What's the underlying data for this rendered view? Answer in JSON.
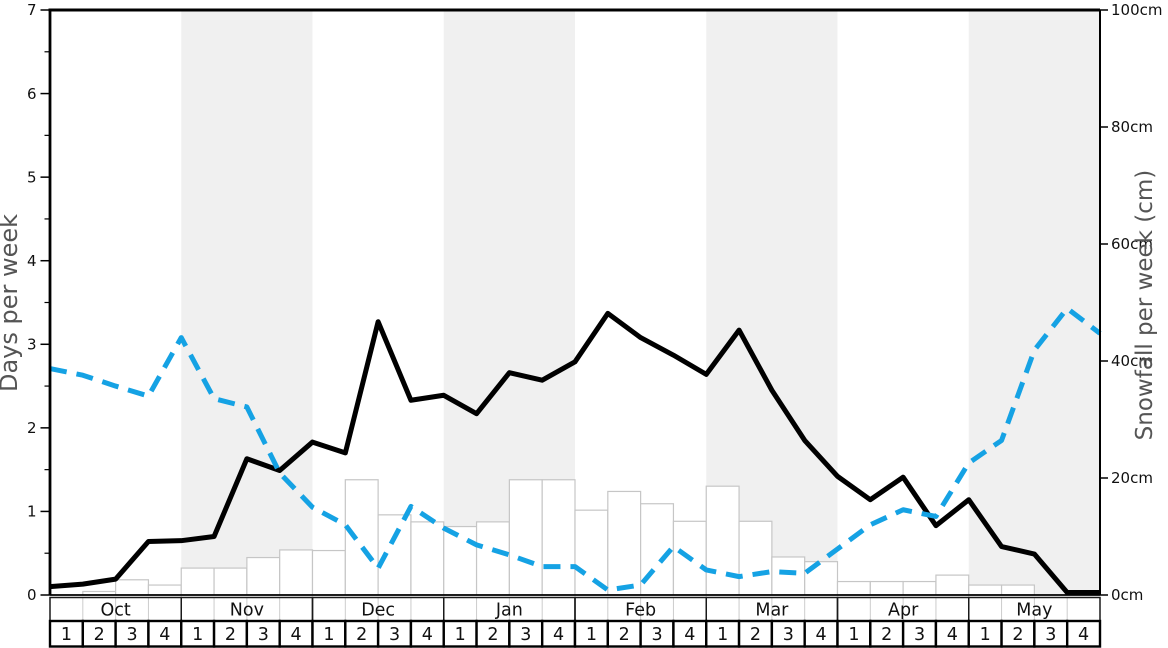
{
  "page": {
    "background": "#ffffff"
  },
  "chart_data": {
    "type": "line+bar",
    "title": "",
    "months": [
      "Oct",
      "Nov",
      "Dec",
      "Jan",
      "Feb",
      "Mar",
      "Apr",
      "May"
    ],
    "week_labels": [
      "1",
      "2",
      "3",
      "4"
    ],
    "shaded_months": [
      "Nov",
      "Jan",
      "Mar",
      "May"
    ],
    "left_axis": {
      "label": "Days per week",
      "min": 0,
      "max": 7,
      "major_tick": 1,
      "minor_tick": 0.5,
      "tick_labels": [
        "0",
        "1",
        "2",
        "3",
        "4",
        "5",
        "6",
        "7"
      ]
    },
    "right_axis": {
      "label": "Snowfall per week (cm)",
      "min": 0,
      "max": 100,
      "tick_step": 20,
      "tick_labels": [
        "0cm",
        "20cm",
        "40cm",
        "60cm",
        "80cm",
        "100cm"
      ]
    },
    "x_description": "33 line points plotted at week boundaries from start of Oct to end of May; 32 weekly bars",
    "series": [
      {
        "name": "days_per_week_solid_black",
        "style": "solid",
        "axis": "left",
        "color": "#000000",
        "values": [
          0.1,
          0.13,
          0.19,
          0.64,
          0.65,
          0.7,
          1.63,
          1.49,
          1.83,
          1.7,
          3.27,
          2.33,
          2.39,
          2.17,
          2.66,
          2.57,
          2.79,
          3.37,
          3.08,
          2.87,
          2.64,
          3.17,
          2.45,
          1.85,
          1.42,
          1.14,
          1.41,
          0.83,
          1.14,
          0.58,
          0.49,
          0.03,
          0.03
        ]
      },
      {
        "name": "dashed_blue_line",
        "style": "dashed",
        "axis": "left",
        "color": "#15a2e4",
        "values": [
          2.71,
          2.63,
          2.5,
          2.38,
          3.08,
          2.35,
          2.25,
          1.46,
          1.05,
          0.84,
          0.32,
          1.06,
          0.8,
          0.6,
          0.48,
          0.34,
          0.34,
          0.06,
          0.12,
          0.58,
          0.3,
          0.22,
          0.28,
          0.26,
          0.55,
          0.84,
          1.02,
          0.94,
          1.58,
          1.85,
          2.93,
          3.43,
          3.13
        ]
      }
    ],
    "bars": {
      "name": "snowfall_per_week_cm",
      "axis": "right",
      "values": [
        0,
        0.6,
        2.6,
        1.7,
        4.6,
        4.6,
        6.4,
        7.7,
        7.6,
        19.7,
        13.7,
        12.5,
        11.7,
        12.5,
        19.7,
        19.7,
        14.5,
        17.7,
        15.6,
        12.6,
        18.6,
        12.6,
        6.5,
        5.7,
        2.3,
        2.3,
        2.3,
        3.4,
        1.7,
        1.7,
        0,
        0
      ]
    },
    "colors": {
      "month_band": "#f0f0f0",
      "bar_fill": "#ffffff",
      "bar_stroke": "#c6c6c6",
      "axis_title": "#555555",
      "tick_label": "#111111",
      "table_line": "#1a1a1a"
    }
  }
}
